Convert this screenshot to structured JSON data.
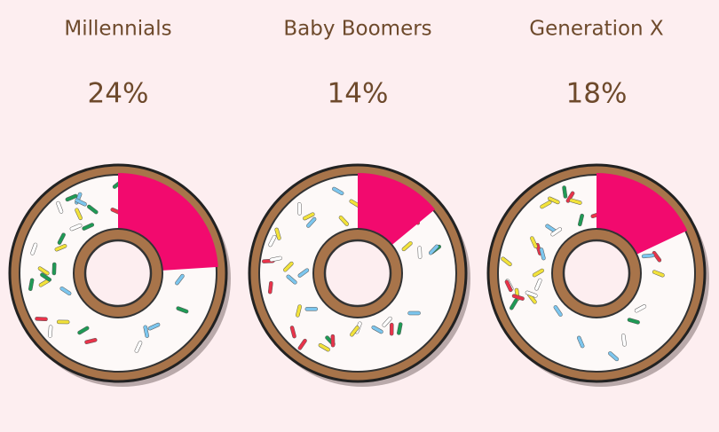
{
  "chart_data": [
    {
      "type": "donut",
      "title": "Millennials",
      "values": [
        24
      ],
      "value_labels": [
        "24%"
      ],
      "color": "#f20a6e"
    },
    {
      "type": "donut",
      "title": "Baby Boomers",
      "values": [
        14
      ],
      "value_labels": [
        "14%"
      ],
      "color": "#f20a6e"
    },
    {
      "type": "donut",
      "title": "Generation X",
      "values": [
        18
      ],
      "value_labels": [
        "18%"
      ],
      "color": "#f20a6e"
    }
  ]
}
